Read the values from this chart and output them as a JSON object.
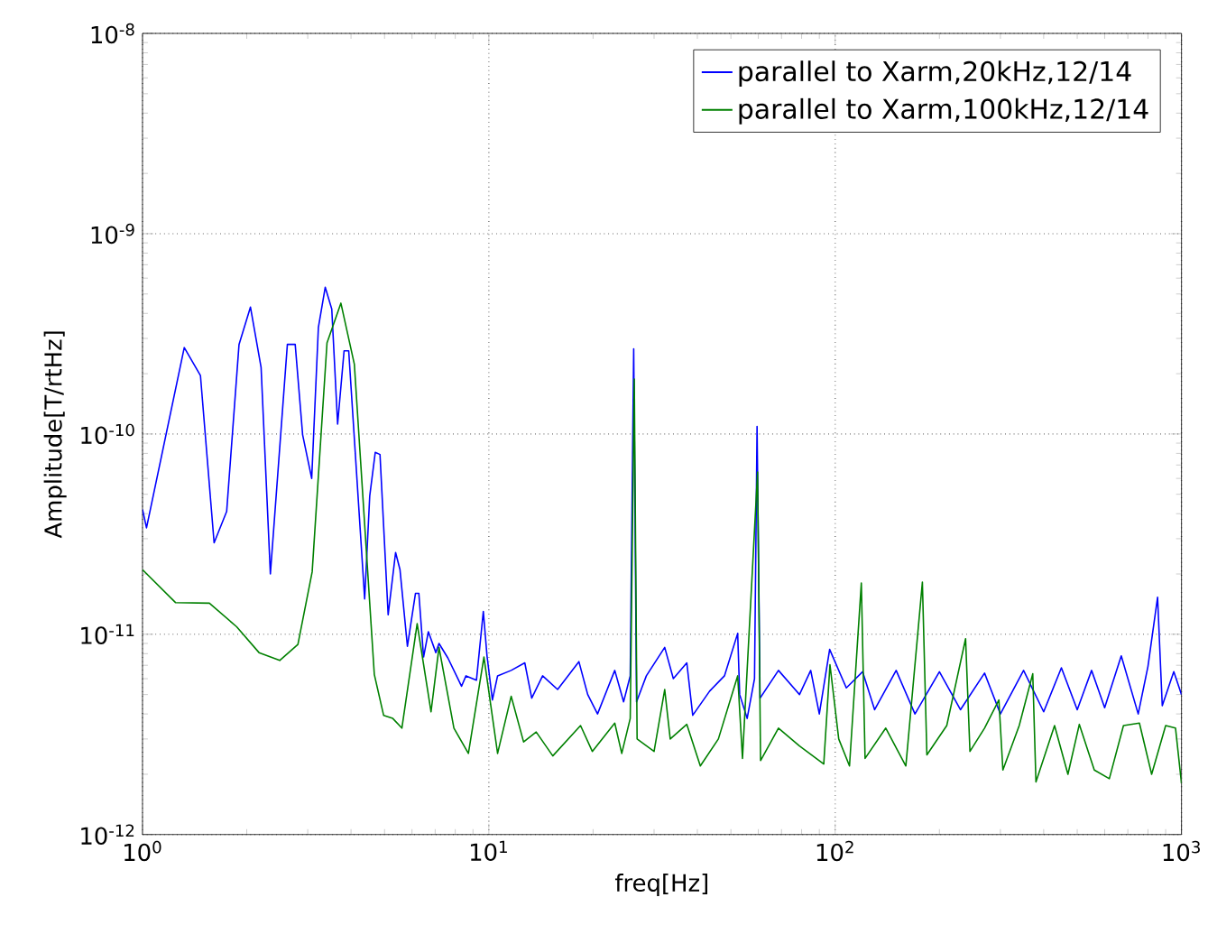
{
  "chart_data": {
    "type": "line",
    "xlabel": "freq[Hz]",
    "ylabel": "Amplitude[T/rtHz]",
    "log": "xy",
    "grid": true,
    "legend": "top right",
    "xlim": [
      1,
      1000
    ],
    "ylim": [
      1e-12,
      1e-08
    ],
    "xticks": [
      {
        "value": 1,
        "label": "10$^{0}$"
      },
      {
        "value": 10,
        "label": "10$^{1}$"
      },
      {
        "value": 100,
        "label": "10$^{2}$"
      },
      {
        "value": 1000,
        "label": "10$^{3}$"
      }
    ],
    "yticks": [
      {
        "value": 1e-12,
        "label": "10$^{-12}$"
      },
      {
        "value": 1e-11,
        "label": "10$^{-11}$"
      },
      {
        "value": 1e-10,
        "label": "10$^{-10}$"
      },
      {
        "value": 1e-09,
        "label": "10$^{-9}$"
      },
      {
        "value": 1e-08,
        "label": "10$^{-8}$"
      }
    ],
    "series": [
      {
        "name": "parallel to Xarm,20kHz,12/14",
        "color": "#0000ff",
        "x": [
          1.0,
          1.027,
          1.32,
          1.47,
          1.61,
          1.75,
          1.9,
          2.05,
          2.2,
          2.34,
          2.62,
          2.76,
          2.9,
          3.08,
          3.22,
          3.37,
          3.52,
          3.66,
          3.82,
          3.94,
          4.38,
          4.53,
          4.7,
          4.85,
          5.12,
          5.38,
          5.54,
          5.82,
          6.14,
          6.28,
          6.48,
          6.69,
          7.03,
          7.18,
          7.62,
          8.34,
          8.59,
          9.21,
          9.64,
          9.88,
          10.24,
          10.6,
          11.6,
          12.7,
          13.3,
          14.3,
          15.8,
          18.2,
          19.3,
          20.6,
          23.1,
          24.5,
          25.6,
          26.2,
          26.7,
          28.5,
          32.2,
          34.1,
          37.3,
          38.8,
          43.4,
          47.9,
          52.3,
          53.0,
          55.7,
          58.5,
          59.5,
          60.7,
          68.6,
          78.9,
          85,
          90,
          96.4,
          107.7,
          120,
          130,
          150,
          170,
          200,
          230,
          270,
          300,
          350,
          400,
          450,
          500,
          550,
          600,
          670,
          750,
          800,
          853,
          880,
          950,
          1000
        ],
        "values": [
          4.2e-11,
          3.4e-11,
          2.7e-10,
          1.96e-10,
          2.86e-11,
          4.1e-11,
          2.8e-10,
          4.3e-10,
          2.15e-10,
          2e-11,
          2.8e-10,
          2.8e-10,
          9.9e-11,
          6e-11,
          3.4e-10,
          5.4e-10,
          4.2e-10,
          1.12e-10,
          2.6e-10,
          2.6e-10,
          1.5e-11,
          4.9e-11,
          8.1e-11,
          7.9e-11,
          1.25e-11,
          2.56e-11,
          2.1e-11,
          8.7e-12,
          1.6e-11,
          1.6e-11,
          7.7e-12,
          1.03e-11,
          8.1e-12,
          9e-12,
          7.6e-12,
          5.5e-12,
          6.2e-12,
          5.9e-12,
          1.3e-11,
          7.8e-12,
          4.7e-12,
          6.2e-12,
          6.6e-12,
          7.2e-12,
          4.8e-12,
          6.2e-12,
          5.3e-12,
          7.3e-12,
          5e-12,
          4e-12,
          6.6e-12,
          4.6e-12,
          6.2e-12,
          2.66e-10,
          4.6e-12,
          6.2e-12,
          8.6e-12,
          6e-12,
          7.2e-12,
          3.94e-12,
          5.2e-12,
          6.2e-12,
          1.01e-11,
          5e-12,
          3.8e-12,
          6e-12,
          1.09e-10,
          4.8e-12,
          6.6e-12,
          5e-12,
          6.6e-12,
          4e-12,
          8.4e-12,
          5.4e-12,
          6.5e-12,
          4.2e-12,
          6.6e-12,
          4e-12,
          6.5e-12,
          4.2e-12,
          6.4e-12,
          4e-12,
          6.6e-12,
          4.1e-12,
          6.8e-12,
          4.2e-12,
          6.6e-12,
          4.3e-12,
          7.8e-12,
          4e-12,
          6.9e-12,
          1.53e-11,
          4.4e-12,
          6.5e-12,
          5e-12
        ]
      },
      {
        "name": "parallel to Xarm,100kHz,12/14",
        "color": "#008000",
        "x": [
          1.0,
          1.245,
          1.56,
          1.87,
          2.17,
          2.49,
          2.81,
          3.09,
          3.41,
          3.74,
          4.09,
          4.67,
          4.97,
          5.28,
          5.61,
          6.21,
          6.81,
          7.18,
          7.93,
          8.73,
          9.68,
          10.6,
          11.6,
          12.6,
          13.7,
          15.3,
          18.4,
          19.9,
          23.1,
          24.2,
          25.6,
          26.3,
          26.8,
          30.0,
          32.2,
          33.4,
          37.3,
          40.8,
          46.0,
          52.3,
          54.0,
          59.7,
          60.9,
          68.6,
          78.9,
          92.7,
          96.6,
          102.4,
          110,
          119,
          122,
          140,
          160,
          178.6,
          184,
          210,
          238,
          245,
          270,
          297,
          305,
          340,
          372,
          380,
          430,
          470,
          507,
          560,
          619,
          680,
          756,
          820,
          900,
          961,
          1000
        ],
        "values": [
          2.1e-11,
          1.44e-11,
          1.43e-11,
          1.09e-11,
          8.1e-12,
          7.4e-12,
          8.9e-12,
          2.05e-11,
          2.85e-10,
          4.5e-10,
          2.23e-10,
          6.3e-12,
          3.93e-12,
          3.8e-12,
          3.4e-12,
          1.13e-11,
          4.1e-12,
          8.6e-12,
          3.4e-12,
          2.54e-12,
          7.7e-12,
          2.54e-12,
          4.9e-12,
          2.9e-12,
          3.25e-12,
          2.47e-12,
          3.5e-12,
          2.6e-12,
          3.6e-12,
          2.54e-12,
          3.8e-12,
          1.88e-10,
          3e-12,
          2.6e-12,
          5.3e-12,
          3e-12,
          3.55e-12,
          2.2e-12,
          3e-12,
          6.2e-12,
          2.4e-12,
          6.45e-11,
          2.34e-12,
          3.4e-12,
          2.77e-12,
          2.25e-12,
          7.05e-12,
          3e-12,
          2.2e-12,
          1.8e-11,
          2.4e-12,
          3.4e-12,
          2.2e-12,
          1.82e-11,
          2.5e-12,
          3.5e-12,
          9.5e-12,
          2.6e-12,
          3.4e-12,
          4.7e-12,
          2.1e-12,
          3.5e-12,
          6.35e-12,
          1.83e-12,
          3.5e-12,
          2e-12,
          3.55e-12,
          2.1e-12,
          1.9e-12,
          3.5e-12,
          3.6e-12,
          2e-12,
          3.5e-12,
          3.4e-12,
          1.8e-12
        ]
      }
    ]
  }
}
